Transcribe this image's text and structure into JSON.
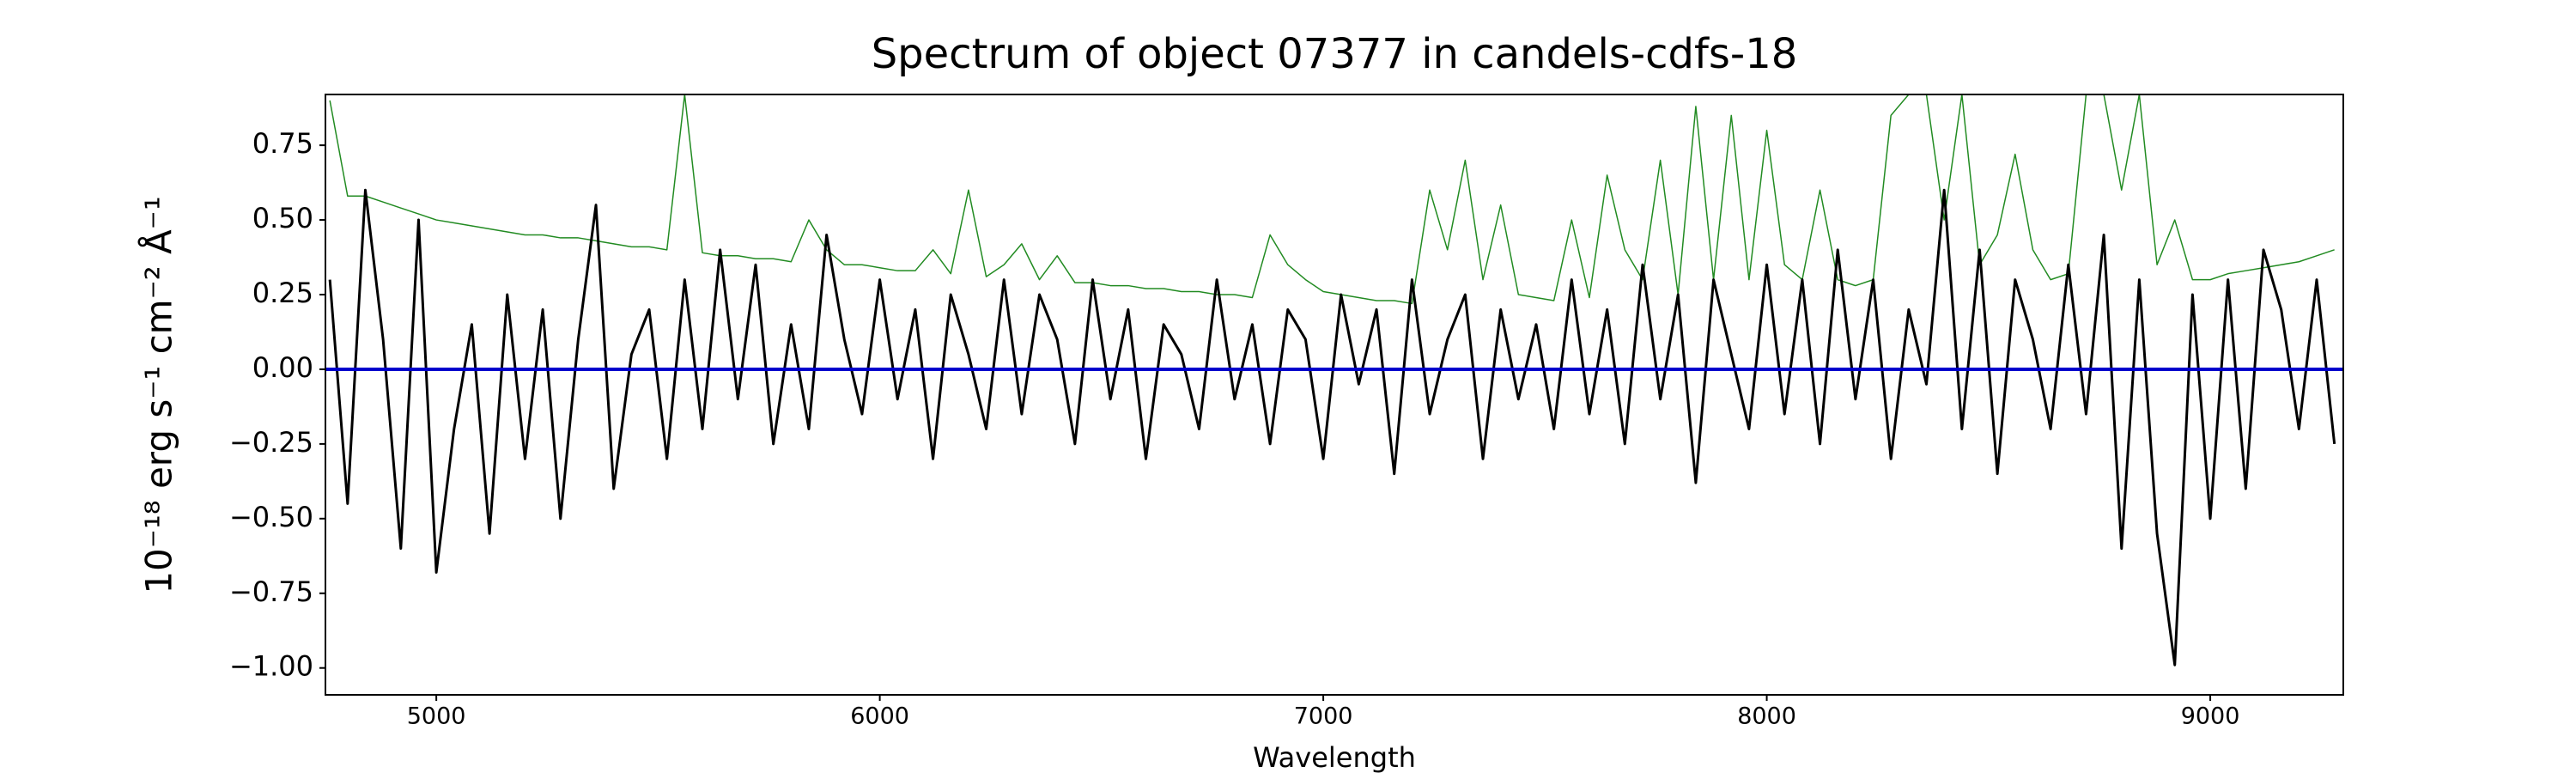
{
  "chart_data": {
    "type": "line",
    "title": "Spectrum of object 07377 in candels-cdfs-18",
    "xlabel": "Wavelength",
    "ylabel": "10⁻¹⁸ erg s⁻¹ cm⁻² Å⁻¹",
    "xlim": [
      4750,
      9300
    ],
    "ylim": [
      -1.09,
      0.92
    ],
    "xticks": [
      5000,
      6000,
      7000,
      8000,
      9000
    ],
    "yticks": [
      {
        "value": 0.75,
        "label": "0.75"
      },
      {
        "value": 0.5,
        "label": "0.50"
      },
      {
        "value": 0.25,
        "label": "0.25"
      },
      {
        "value": 0,
        "label": "0.00"
      },
      {
        "value": -0.25,
        "label": "−0.25"
      },
      {
        "value": -0.5,
        "label": "−0.50"
      },
      {
        "value": -0.75,
        "label": "−0.75"
      },
      {
        "value": -1,
        "label": "−1.00"
      }
    ],
    "x": [
      4760,
      4800,
      4840,
      4880,
      4920,
      4960,
      5000,
      5040,
      5080,
      5120,
      5160,
      5200,
      5240,
      5280,
      5320,
      5360,
      5400,
      5440,
      5480,
      5520,
      5560,
      5600,
      5640,
      5680,
      5720,
      5760,
      5800,
      5840,
      5880,
      5920,
      5960,
      6000,
      6040,
      6080,
      6120,
      6160,
      6200,
      6240,
      6280,
      6320,
      6360,
      6400,
      6440,
      6480,
      6520,
      6560,
      6600,
      6640,
      6680,
      6720,
      6760,
      6800,
      6840,
      6880,
      6920,
      6960,
      7000,
      7040,
      7080,
      7120,
      7160,
      7200,
      7240,
      7280,
      7320,
      7360,
      7400,
      7440,
      7480,
      7520,
      7560,
      7600,
      7640,
      7680,
      7720,
      7760,
      7800,
      7840,
      7880,
      7920,
      7960,
      8000,
      8040,
      8080,
      8120,
      8160,
      8200,
      8240,
      8280,
      8320,
      8360,
      8400,
      8440,
      8480,
      8520,
      8560,
      8600,
      8640,
      8680,
      8720,
      8760,
      8800,
      8840,
      8880,
      8920,
      8960,
      9000,
      9040,
      9080,
      9120,
      9160,
      9200,
      9240,
      9280
    ],
    "series": [
      {
        "color": "#228b22",
        "values": [
          0.9,
          0.58,
          0.58,
          0.56,
          0.54,
          0.52,
          0.5,
          0.49,
          0.48,
          0.47,
          0.46,
          0.45,
          0.45,
          0.44,
          0.44,
          0.43,
          0.42,
          0.41,
          0.41,
          0.4,
          0.92,
          0.39,
          0.38,
          0.38,
          0.37,
          0.37,
          0.36,
          0.5,
          0.4,
          0.35,
          0.35,
          0.34,
          0.33,
          0.33,
          0.4,
          0.32,
          0.6,
          0.31,
          0.35,
          0.42,
          0.3,
          0.38,
          0.29,
          0.29,
          0.28,
          0.28,
          0.27,
          0.27,
          0.26,
          0.26,
          0.25,
          0.25,
          0.24,
          0.45,
          0.35,
          0.3,
          0.26,
          0.25,
          0.24,
          0.23,
          0.23,
          0.22,
          0.6,
          0.4,
          0.7,
          0.3,
          0.55,
          0.25,
          0.24,
          0.23,
          0.5,
          0.24,
          0.65,
          0.4,
          0.3,
          0.7,
          0.25,
          0.88,
          0.3,
          0.85,
          0.3,
          0.8,
          0.35,
          0.3,
          0.6,
          0.3,
          0.28,
          0.3,
          0.85,
          0.92,
          0.92,
          0.5,
          0.92,
          0.35,
          0.45,
          0.72,
          0.4,
          0.3,
          0.32,
          0.92,
          0.92,
          0.6,
          0.92,
          0.35,
          0.5,
          0.3,
          0.3,
          0.32,
          0.33,
          0.34,
          0.35,
          0.36,
          0.38,
          0.4
        ]
      },
      {
        "color": "#000000",
        "values": [
          0.3,
          -0.45,
          0.6,
          0.1,
          -0.6,
          0.5,
          -0.68,
          -0.2,
          0.15,
          -0.55,
          0.25,
          -0.3,
          0.2,
          -0.5,
          0.1,
          0.55,
          -0.4,
          0.05,
          0.2,
          -0.3,
          0.3,
          -0.2,
          0.4,
          -0.1,
          0.35,
          -0.25,
          0.15,
          -0.2,
          0.45,
          0.1,
          -0.15,
          0.3,
          -0.1,
          0.2,
          -0.3,
          0.25,
          0.05,
          -0.2,
          0.3,
          -0.15,
          0.25,
          0.1,
          -0.25,
          0.3,
          -0.1,
          0.2,
          -0.3,
          0.15,
          0.05,
          -0.2,
          0.3,
          -0.1,
          0.15,
          -0.25,
          0.2,
          0.1,
          -0.3,
          0.25,
          -0.05,
          0.2,
          -0.35,
          0.3,
          -0.15,
          0.1,
          0.25,
          -0.3,
          0.2,
          -0.1,
          0.15,
          -0.2,
          0.3,
          -0.15,
          0.2,
          -0.25,
          0.35,
          -0.1,
          0.25,
          -0.38,
          0.3,
          0.05,
          -0.2,
          0.35,
          -0.15,
          0.3,
          -0.25,
          0.4,
          -0.1,
          0.3,
          -0.3,
          0.2,
          -0.05,
          0.6,
          -0.2,
          0.4,
          -0.35,
          0.3,
          0.1,
          -0.2,
          0.35,
          -0.15,
          0.45,
          -0.6,
          0.3,
          -0.55,
          -0.99,
          0.25,
          -0.5,
          0.3,
          -0.4,
          0.4,
          0.2,
          -0.2,
          0.3,
          -0.25
        ]
      }
    ],
    "zero_line": {
      "value": 0,
      "color": "#0000cc"
    }
  }
}
